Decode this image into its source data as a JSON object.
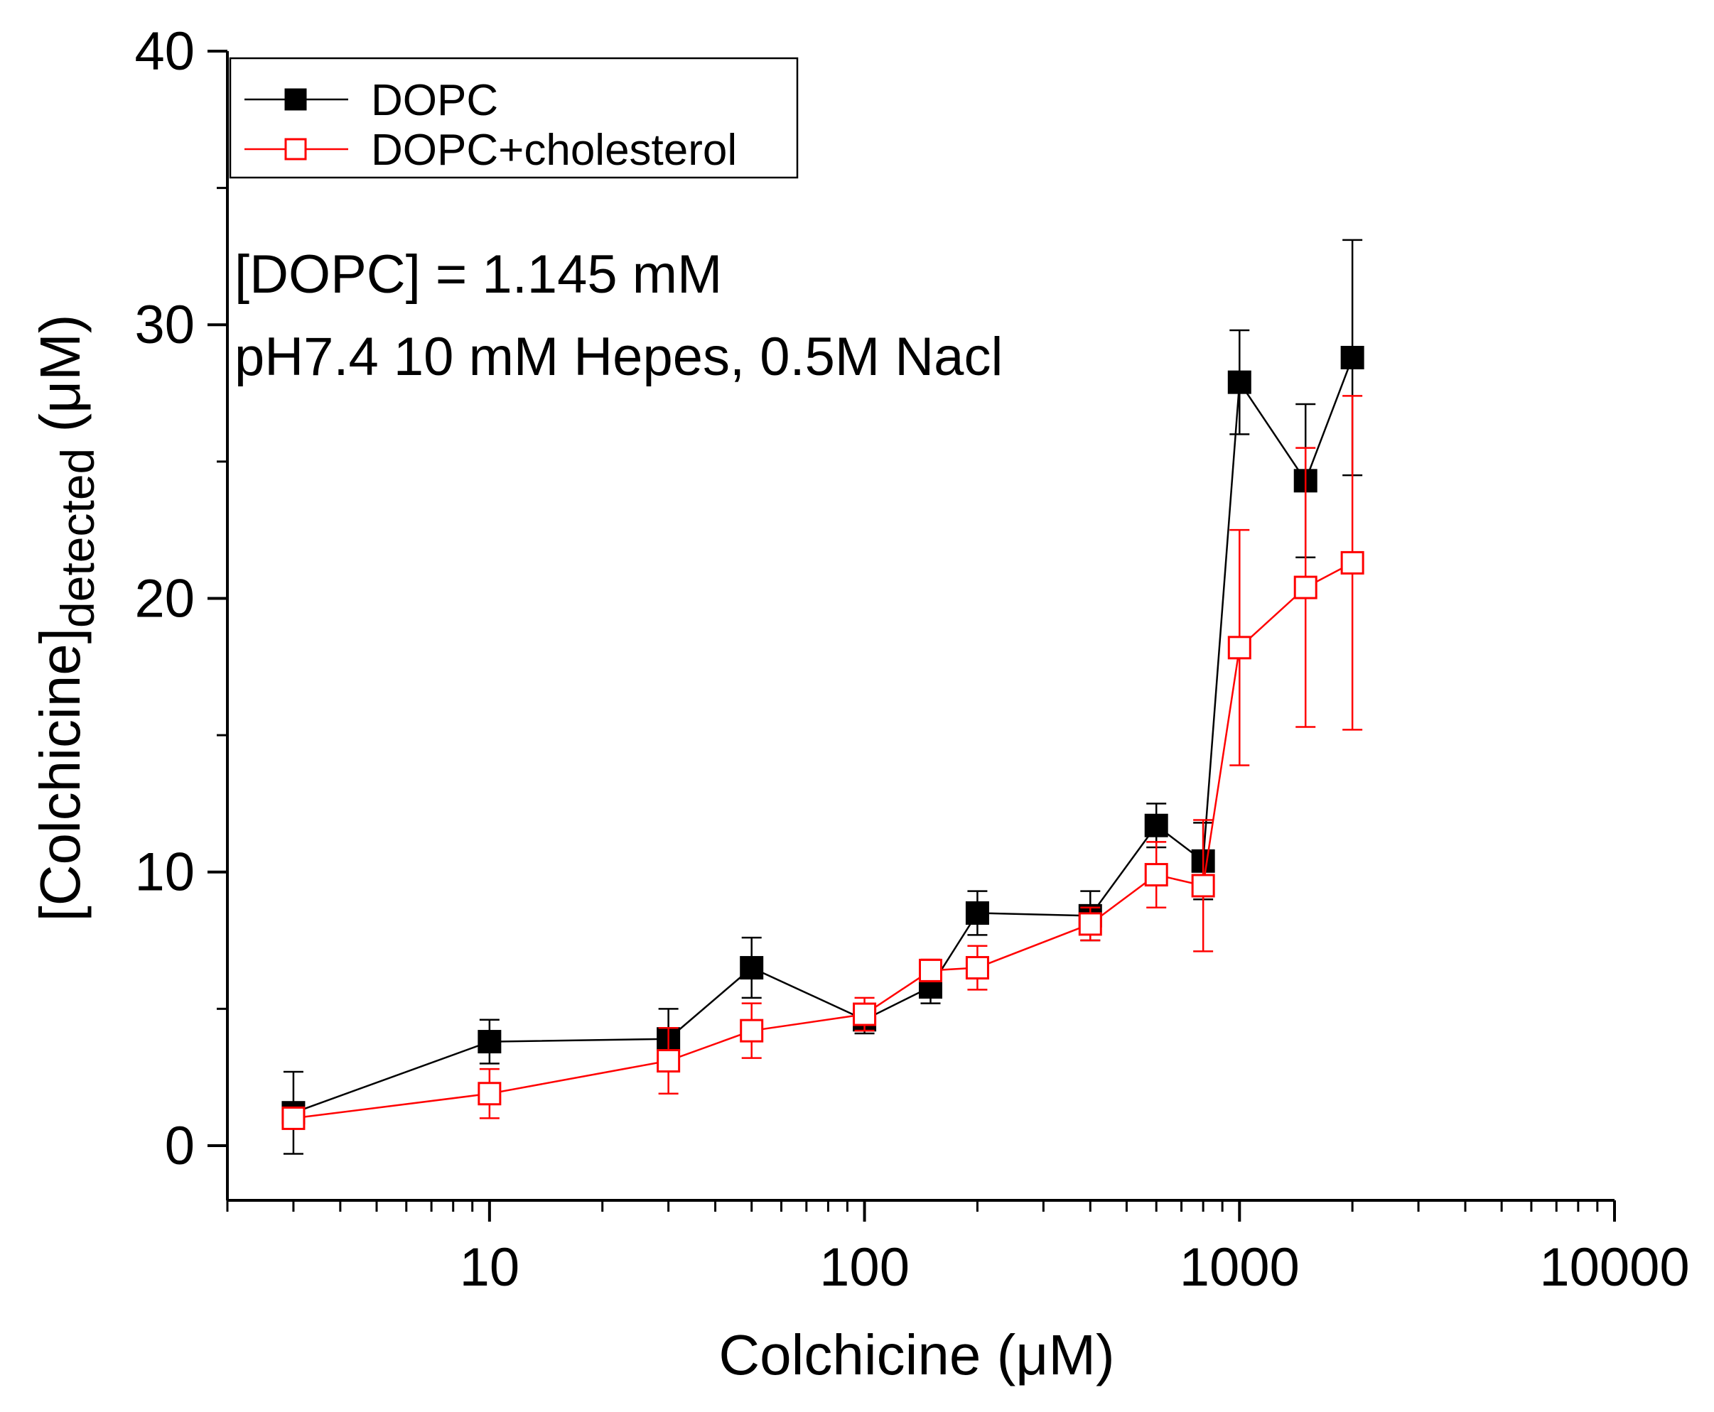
{
  "chart_data": {
    "type": "line",
    "title": "",
    "xlabel": "Colchicine (μM)",
    "ylabel_main": "[Colchicine]",
    "ylabel_sub": "detected",
    "ylabel_unit": " (μM)",
    "x_scale": "log",
    "xlim": [
      2,
      10000
    ],
    "ylim": [
      -2,
      40
    ],
    "x_ticks": [
      10,
      100,
      1000,
      10000
    ],
    "x_tick_labels": [
      "10",
      "100",
      "1000",
      "10000"
    ],
    "y_ticks": [
      0,
      10,
      20,
      30,
      40
    ],
    "y_tick_labels": [
      "0",
      "10",
      "20",
      "30",
      "40"
    ],
    "grid": false,
    "legend_position": "top-left",
    "annotations": [
      "[DOPC] = 1.145 mM",
      "pH7.4 10 mM Hepes, 0.5M Nacl"
    ],
    "series": [
      {
        "name": "DOPC",
        "color": "#000000",
        "marker": "filled-square",
        "x": [
          3,
          10,
          30,
          50,
          100,
          150,
          200,
          400,
          600,
          800,
          1000,
          1500,
          2000
        ],
        "y": [
          1.2,
          3.8,
          3.9,
          6.5,
          4.6,
          5.8,
          8.5,
          8.4,
          11.7,
          10.4,
          27.9,
          24.3,
          28.8
        ],
        "err": [
          1.5,
          0.8,
          1.1,
          1.1,
          0.5,
          0.6,
          0.8,
          0.9,
          0.8,
          1.4,
          1.9,
          2.8,
          4.3
        ]
      },
      {
        "name": "DOPC+cholesterol",
        "color": "#ff0000",
        "marker": "open-square",
        "x": [
          3,
          10,
          30,
          50,
          100,
          150,
          200,
          400,
          600,
          800,
          1000,
          1500,
          2000
        ],
        "y": [
          1.0,
          1.9,
          3.1,
          4.2,
          4.8,
          6.4,
          6.5,
          8.1,
          9.9,
          9.5,
          18.2,
          20.4,
          21.3
        ],
        "err": [
          0.3,
          0.9,
          1.2,
          1.0,
          0.6,
          0.4,
          0.8,
          0.6,
          1.2,
          2.4,
          4.3,
          5.1,
          6.1
        ]
      }
    ]
  }
}
